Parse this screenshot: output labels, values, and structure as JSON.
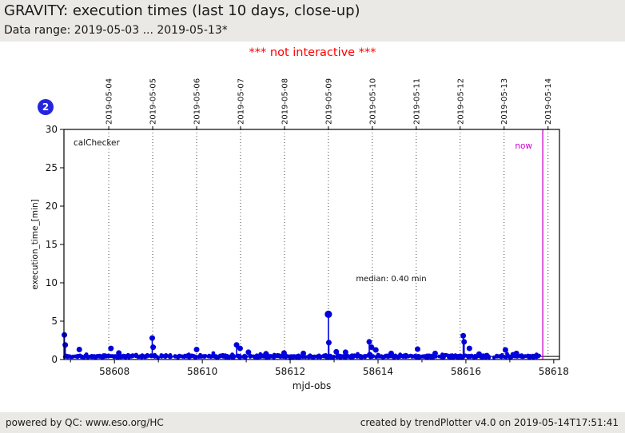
{
  "header": {
    "title": "GRAVITY: execution times (last 10 days, close-up)",
    "data_range": "Data range: 2019-05-03 ... 2019-05-13*"
  },
  "banner": {
    "text": "*** not interactive ***",
    "color": "#ff0000"
  },
  "badge": {
    "label": "2",
    "color": "#2525dd"
  },
  "footer": {
    "left": "powered by QC: www.eso.org/HC",
    "right": "created by trendPlotter v4.0 on 2019-05-14T17:51:41"
  },
  "chart_data": {
    "type": "scatter",
    "title": "GRAVITY: execution times (last 10 days, close-up)",
    "series_label": "calChecker",
    "xlabel": "mjd-obs",
    "ylabel": "execution_time_[min]",
    "xlim": [
      58606.85,
      58618.13
    ],
    "ylim": [
      0,
      30
    ],
    "xticks_major": [
      58608,
      58610,
      58612,
      58614,
      58616,
      58618
    ],
    "xticks_minor": [
      58607,
      58609,
      58611,
      58613,
      58615,
      58617
    ],
    "yticks": [
      0,
      5,
      10,
      15,
      20,
      25,
      30
    ],
    "grid": "vertical-dotted",
    "point_color": "#0000dd",
    "frame_color": "#000000",
    "top_axis": {
      "labels": [
        "2019-05-04",
        "2019-05-05",
        "2019-05-06",
        "2019-05-07",
        "2019-05-08",
        "2019-05-09",
        "2019-05-10",
        "2019-05-11",
        "2019-05-12",
        "2019-05-13",
        "2019-05-14"
      ],
      "mjd": [
        58607.87,
        58608.87,
        58609.87,
        58610.87,
        58611.87,
        58612.87,
        58613.87,
        58614.87,
        58615.87,
        58616.87,
        58617.87
      ]
    },
    "now_line": {
      "mjd": 58617.75,
      "label": "now",
      "color": "#cc00cc"
    },
    "median": {
      "value": 0.4,
      "label": "median: 0.40 min",
      "label_mjd": 58614.3,
      "label_y": 10.5,
      "color": "#000000"
    },
    "spikes": [
      [
        58606.86,
        3.2
      ],
      [
        58606.88,
        1.9
      ],
      [
        58607.2,
        1.3
      ],
      [
        58607.92,
        1.45
      ],
      [
        58608.1,
        0.85
      ],
      [
        58608.86,
        2.8
      ],
      [
        58608.88,
        1.6
      ],
      [
        58609.87,
        1.3
      ],
      [
        58610.78,
        1.9
      ],
      [
        58610.86,
        1.45
      ],
      [
        58611.05,
        0.95
      ],
      [
        58611.45,
        0.75
      ],
      [
        58611.86,
        0.85
      ],
      [
        58612.3,
        0.8
      ],
      [
        58612.87,
        5.9
      ],
      [
        58612.88,
        2.2
      ],
      [
        58613.05,
        1.0
      ],
      [
        58613.26,
        0.95
      ],
      [
        58613.8,
        2.3
      ],
      [
        58613.85,
        1.6
      ],
      [
        58613.95,
        1.25
      ],
      [
        58614.3,
        0.8
      ],
      [
        58614.9,
        1.35
      ],
      [
        58615.3,
        0.8
      ],
      [
        58615.94,
        3.1
      ],
      [
        58615.96,
        2.3
      ],
      [
        58616.08,
        1.45
      ],
      [
        58616.3,
        0.7
      ],
      [
        58616.9,
        1.25
      ],
      [
        58617.15,
        0.8
      ]
    ],
    "baseline_band": {
      "x_start": 58606.86,
      "x_end": 58617.67,
      "y_min": 0.2,
      "y_max": 0.62,
      "n": 700,
      "seed": 7
    }
  }
}
